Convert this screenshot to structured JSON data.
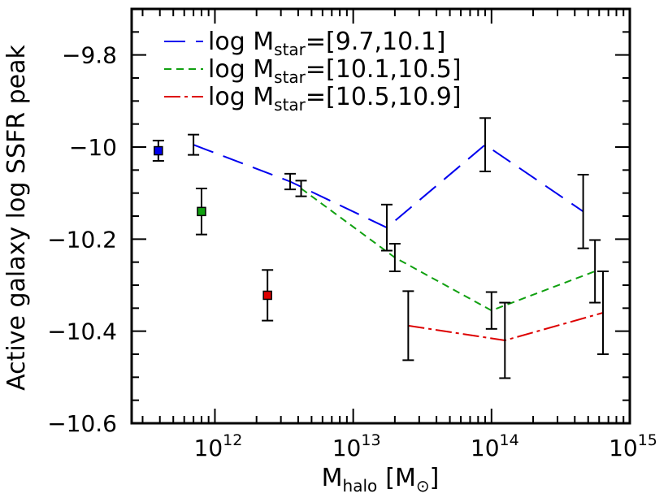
{
  "chart_data": {
    "type": "line",
    "title": "",
    "xlabel": {
      "main": "M",
      "sub": "halo",
      "unit_open": "[M",
      "unit_sub": "⊙",
      "unit_close": "]"
    },
    "ylabel": "Active galaxy log SSFR peak",
    "x_scale": "log",
    "xlim": [
      250000000000,
      1000000000000000
    ],
    "ylim": [
      -10.6,
      -9.7
    ],
    "x_ticks": [
      {
        "value": 1000000000000,
        "base": "10",
        "exp": "12"
      },
      {
        "value": 10000000000000,
        "base": "10",
        "exp": "13"
      },
      {
        "value": 100000000000000,
        "base": "10",
        "exp": "14"
      },
      {
        "value": 1000000000000000,
        "base": "10",
        "exp": "15"
      }
    ],
    "y_ticks": [
      {
        "value": -9.8,
        "label": "−9.8"
      },
      {
        "value": -10.0,
        "label": "−10"
      },
      {
        "value": -10.2,
        "label": "−10.2"
      },
      {
        "value": -10.4,
        "label": "−10.4"
      },
      {
        "value": -10.6,
        "label": "−10.6"
      }
    ],
    "legend_position": "top-left",
    "series": [
      {
        "legend_prefix": "log M",
        "legend_sub": "star",
        "legend_range": "=[9.7,10.1]",
        "color": "#0000ee",
        "dash": "26,13",
        "line": [
          [
            700000000000,
            -9.995
          ],
          [
            3500000000000,
            -10.075
          ],
          [
            17500000000000,
            -10.175
          ],
          [
            90000000000000,
            -9.995
          ],
          [
            460000000000000,
            -10.14
          ]
        ],
        "errorbars": [
          [
            700000000000,
            -9.995,
            0.022
          ],
          [
            3500000000000,
            -10.075,
            0.017
          ],
          [
            17500000000000,
            -10.175,
            0.05
          ],
          [
            90000000000000,
            -9.995,
            0.058
          ],
          [
            460000000000000,
            -10.14,
            0.08
          ]
        ]
      },
      {
        "legend_prefix": "log M",
        "legend_sub": "star",
        "legend_range": "=[10.1,10.5]",
        "color": "#10a010",
        "dash": "9,6",
        "line": [
          [
            4200000000000,
            -10.09
          ],
          [
            20000000000000,
            -10.24
          ],
          [
            100000000000000,
            -10.355
          ],
          [
            560000000000000,
            -10.27
          ]
        ],
        "errorbars": [
          [
            4200000000000,
            -10.09,
            0.017
          ],
          [
            20000000000000,
            -10.24,
            0.03
          ],
          [
            100000000000000,
            -10.355,
            0.04
          ],
          [
            560000000000000,
            -10.27,
            0.068
          ]
        ]
      },
      {
        "legend_prefix": "log M",
        "legend_sub": "star",
        "legend_range": "=[10.5,10.9]",
        "color": "#dd0000",
        "dash": "20,5,4,5",
        "line": [
          [
            25000000000000,
            -10.388
          ],
          [
            125000000000000,
            -10.42
          ],
          [
            640000000000000,
            -10.36
          ]
        ],
        "errorbars": [
          [
            25000000000000,
            -10.388,
            0.075
          ],
          [
            125000000000000,
            -10.42,
            0.082
          ],
          [
            640000000000000,
            -10.36,
            0.09
          ]
        ]
      }
    ],
    "markers": [
      {
        "x": 390000000000,
        "y": -10.008,
        "err": 0.022,
        "color": "#0000ee"
      },
      {
        "x": 800000000000,
        "y": -10.14,
        "err": 0.05,
        "color": "#10a010"
      },
      {
        "x": 2400000000000,
        "y": -10.322,
        "err": 0.055,
        "color": "#dd0000"
      }
    ]
  }
}
